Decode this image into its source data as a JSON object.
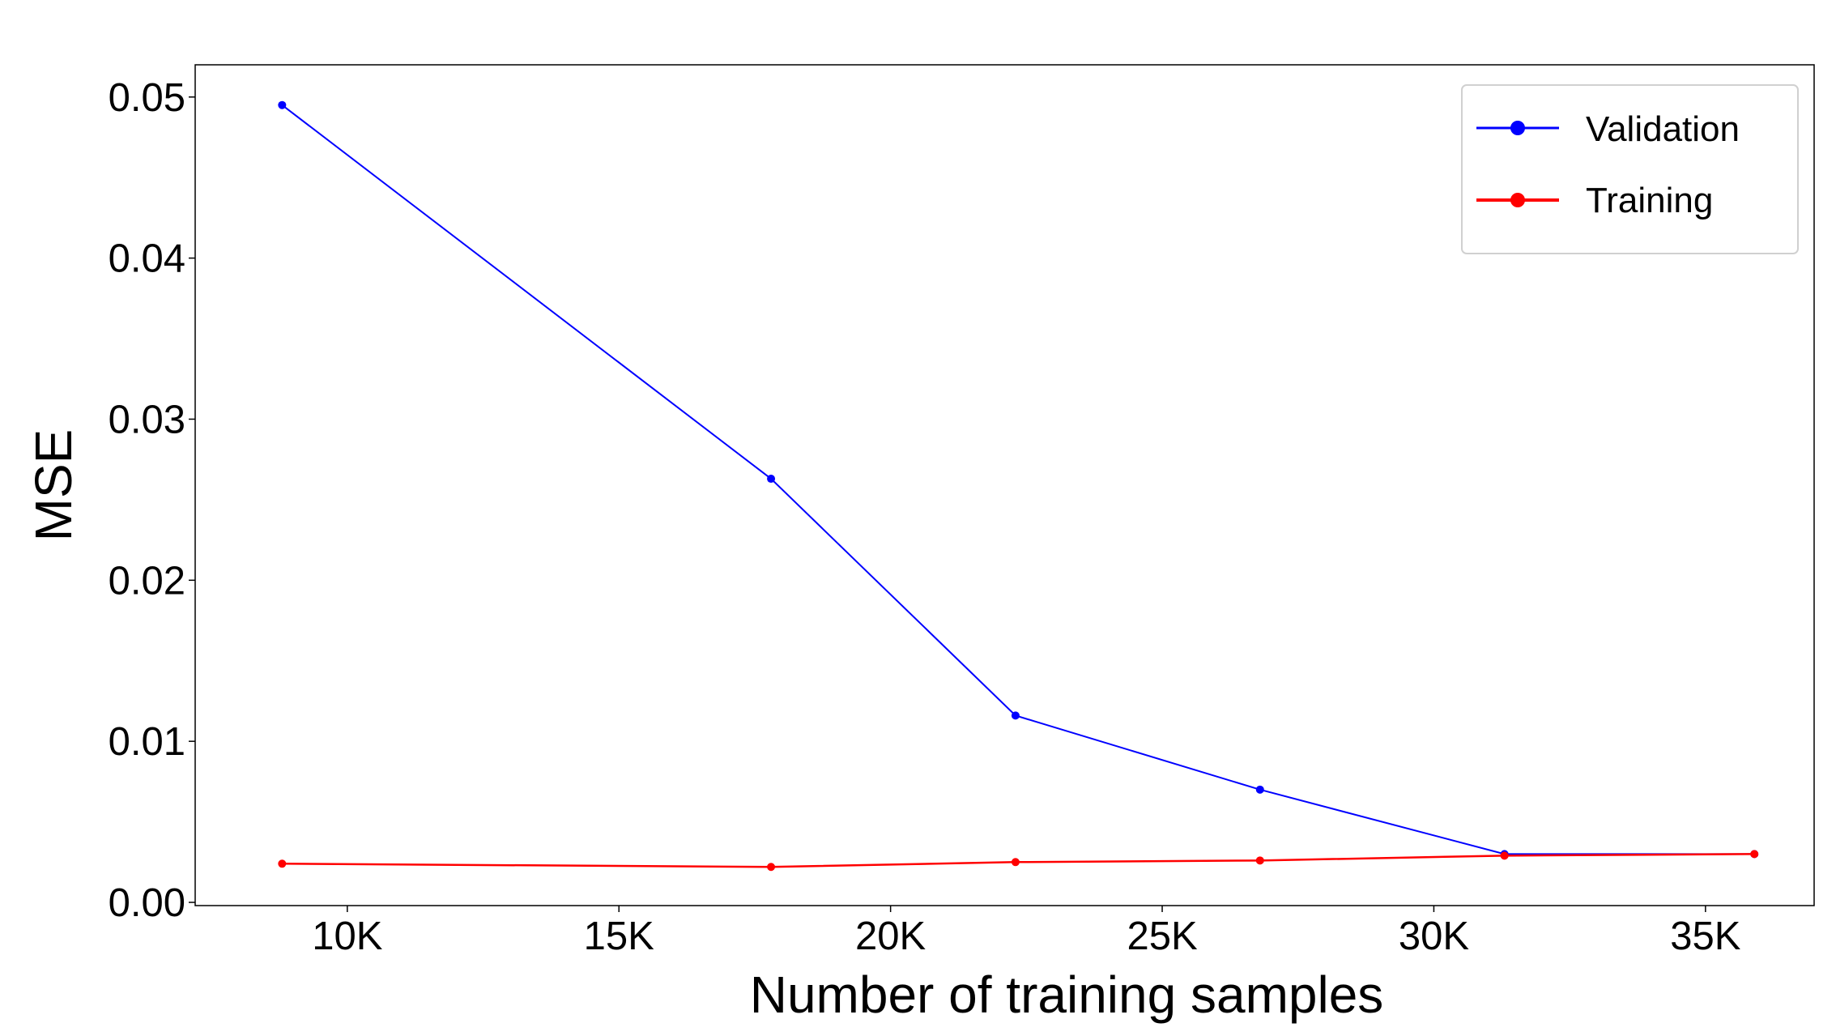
{
  "chart_data": {
    "type": "line",
    "xlabel": "Number of training samples",
    "ylabel": "MSE",
    "xlim": [
      7200,
      37000
    ],
    "ylim": [
      -0.0002,
      0.052
    ],
    "x_ticks": [
      {
        "value": 10000,
        "label": "10K"
      },
      {
        "value": 15000,
        "label": "15K"
      },
      {
        "value": 20000,
        "label": "20K"
      },
      {
        "value": 25000,
        "label": "25K"
      },
      {
        "value": 30000,
        "label": "30K"
      },
      {
        "value": 35000,
        "label": "35K"
      }
    ],
    "y_ticks": [
      {
        "value": 0.0,
        "label": "0.00"
      },
      {
        "value": 0.01,
        "label": "0.01"
      },
      {
        "value": 0.02,
        "label": "0.02"
      },
      {
        "value": 0.03,
        "label": "0.03"
      },
      {
        "value": 0.04,
        "label": "0.04"
      },
      {
        "value": 0.05,
        "label": "0.05"
      }
    ],
    "grid": false,
    "legend_position": "top-right",
    "series": [
      {
        "name": "Validation",
        "color": "#0000ff",
        "x": [
          8800,
          17800,
          22300,
          26800,
          31300,
          35900
        ],
        "y": [
          0.0495,
          0.0263,
          0.0116,
          0.007,
          0.003,
          0.003
        ]
      },
      {
        "name": "Training",
        "color": "#ff0000",
        "x": [
          8800,
          17800,
          22300,
          26800,
          31300,
          35900
        ],
        "y": [
          0.0024,
          0.0022,
          0.0025,
          0.0026,
          0.0029,
          0.003
        ]
      }
    ]
  }
}
